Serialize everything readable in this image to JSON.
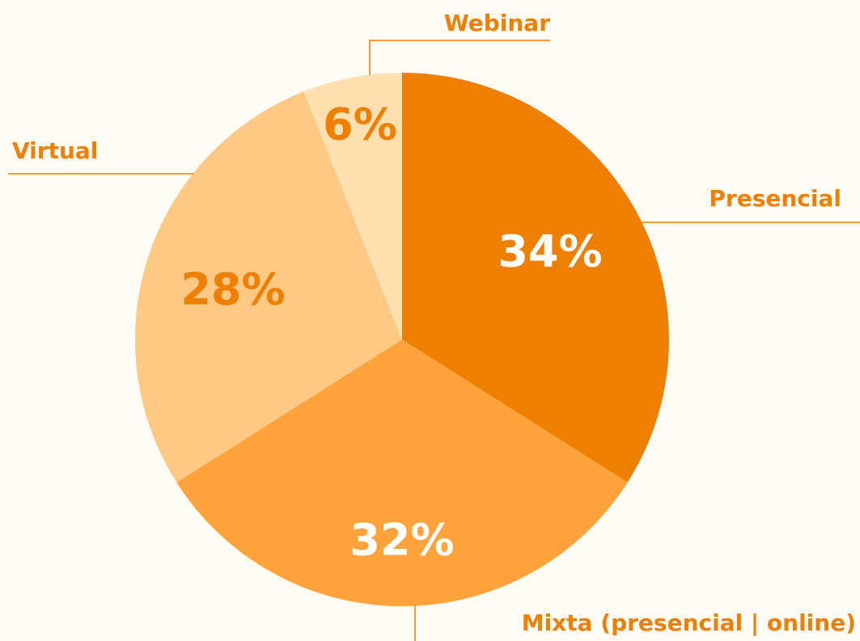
{
  "chart_data": {
    "type": "pie",
    "categories": [
      "Presencial",
      "Mixta (presencial | online)",
      "Virtual",
      "Webinar"
    ],
    "values": [
      34,
      32,
      28,
      6
    ],
    "value_labels": [
      "34%",
      "32%",
      "28%",
      "6%"
    ],
    "colors": [
      "#ee7f00",
      "#ffa33a",
      "#ffc985",
      "#ffe0b0"
    ],
    "label_colors": [
      "#ffffff",
      "#ffffff",
      "#ee7f00",
      "#ee7f00"
    ]
  }
}
